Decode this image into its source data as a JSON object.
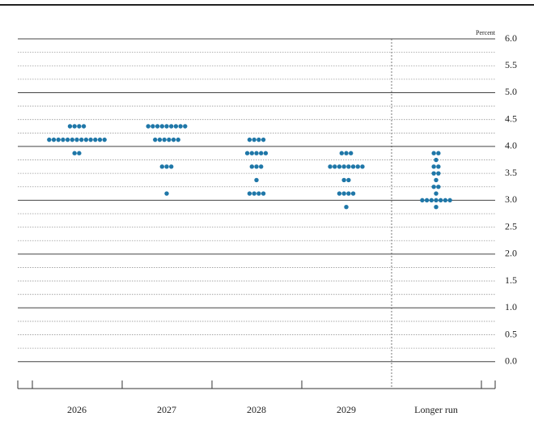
{
  "chart_data": {
    "type": "dot",
    "y_axis_label": "Percent",
    "categories": [
      "2026",
      "2027",
      "2028",
      "2029",
      "Longer run"
    ],
    "dots": [
      [
        {
          "value": 4.375,
          "count": 4
        },
        {
          "value": 4.125,
          "count": 13
        },
        {
          "value": 3.875,
          "count": 2
        }
      ],
      [
        {
          "value": 4.375,
          "count": 9
        },
        {
          "value": 4.125,
          "count": 6
        },
        {
          "value": 3.625,
          "count": 3
        },
        {
          "value": 3.125,
          "count": 1
        }
      ],
      [
        {
          "value": 4.125,
          "count": 4
        },
        {
          "value": 3.875,
          "count": 5
        },
        {
          "value": 3.625,
          "count": 3
        },
        {
          "value": 3.375,
          "count": 1
        },
        {
          "value": 3.125,
          "count": 4
        }
      ],
      [
        {
          "value": 3.875,
          "count": 3
        },
        {
          "value": 3.625,
          "count": 8
        },
        {
          "value": 3.375,
          "count": 2
        },
        {
          "value": 3.125,
          "count": 4
        },
        {
          "value": 2.875,
          "count": 1
        }
      ],
      [
        {
          "value": 3.875,
          "count": 2
        },
        {
          "value": 3.75,
          "count": 1
        },
        {
          "value": 3.625,
          "count": 2
        },
        {
          "value": 3.5,
          "count": 2
        },
        {
          "value": 3.375,
          "count": 1
        },
        {
          "value": 3.25,
          "count": 2
        },
        {
          "value": 3.125,
          "count": 1
        },
        {
          "value": 3.0,
          "count": 7
        },
        {
          "value": 2.875,
          "count": 1
        }
      ]
    ],
    "color": "#1f77a8",
    "ylim": [
      -0.5,
      6.0
    ],
    "yticks": [
      {
        "value": 0,
        "label": "0.0"
      },
      0.5,
      {
        "value": 1,
        "label": "1.0"
      },
      1.5,
      {
        "value": 2,
        "label": "2.0"
      },
      2.5,
      {
        "value": 3,
        "label": "3.0"
      },
      3.5,
      {
        "value": 4,
        "label": "4.0"
      },
      4.5,
      {
        "value": 5,
        "label": "5.0"
      },
      5.5,
      {
        "value": 6,
        "label": "6.0"
      }
    ],
    "minor_yticks": [
      0.25,
      0.75,
      1.25,
      1.75,
      2.25,
      2.75,
      3.25,
      3.75,
      4.25,
      4.75,
      5.25,
      5.75
    ],
    "grid": true
  }
}
